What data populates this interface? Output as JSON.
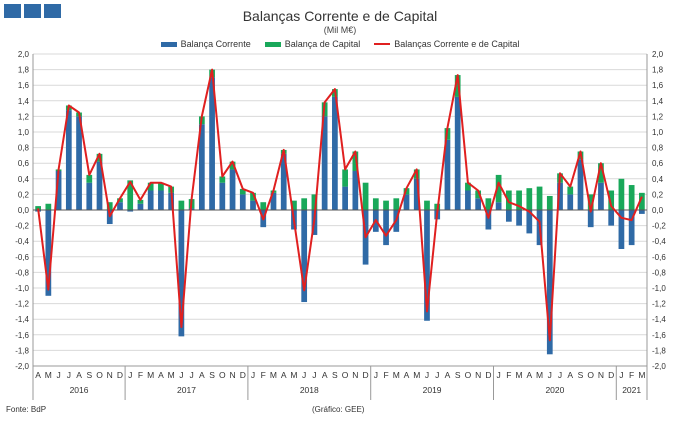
{
  "header": {
    "title": "Balanças Corrente e de Capital",
    "subtitle": "(Mil M€)"
  },
  "footer": {
    "source": "Fonte: BdP",
    "credit": "(Gráfico: GEE)"
  },
  "colors": {
    "logo": "#2f6aa6",
    "current": "#2f6aa6",
    "capital": "#19a85a",
    "combined": "#e02020",
    "grid": "#d9d9d9"
  },
  "chart_data": {
    "type": "bar",
    "ylim": [
      -2.0,
      2.0
    ],
    "yticks": [
      "-2,0",
      "-1,8",
      "-1,6",
      "-1,4",
      "-1,2",
      "-1,0",
      "-0,8",
      "-0,6",
      "-0,4",
      "-0,2",
      "0,0",
      "0,2",
      "0,4",
      "0,6",
      "0,8",
      "1,0",
      "1,2",
      "1,4",
      "1,6",
      "1,8",
      "2,0"
    ],
    "grid": true,
    "legend_position": "top-center",
    "categories": [
      "A",
      "M",
      "J",
      "J",
      "A",
      "S",
      "O",
      "N",
      "D",
      "J",
      "F",
      "M",
      "A",
      "M",
      "J",
      "J",
      "A",
      "S",
      "O",
      "N",
      "D",
      "J",
      "F",
      "M",
      "A",
      "M",
      "J",
      "J",
      "A",
      "S",
      "O",
      "N",
      "D",
      "J",
      "F",
      "M",
      "A",
      "M",
      "J",
      "J",
      "A",
      "S",
      "O",
      "N",
      "D",
      "J",
      "F",
      "M",
      "A",
      "M",
      "J",
      "J",
      "A",
      "S",
      "O",
      "N",
      "D",
      "J",
      "F",
      "M"
    ],
    "years": [
      {
        "label": "2016",
        "start": 0,
        "count": 9
      },
      {
        "label": "2017",
        "start": 9,
        "count": 12
      },
      {
        "label": "2018",
        "start": 21,
        "count": 12
      },
      {
        "label": "2019",
        "start": 33,
        "count": 12
      },
      {
        "label": "2020",
        "start": 45,
        "count": 12
      },
      {
        "label": "2021",
        "start": 57,
        "count": 3
      }
    ],
    "series": [
      {
        "name": "Balança Corrente",
        "kind": "bar",
        "values": [
          -0.02,
          -1.1,
          0.5,
          1.28,
          1.2,
          0.35,
          0.62,
          -0.18,
          0.1,
          -0.02,
          0.08,
          0.25,
          0.25,
          0.22,
          -1.62,
          0.02,
          1.1,
          1.7,
          0.35,
          0.52,
          0.2,
          0.12,
          -0.22,
          0.22,
          0.72,
          -0.25,
          -1.18,
          -0.32,
          1.2,
          1.45,
          0.3,
          0.5,
          -0.7,
          -0.28,
          -0.45,
          -0.28,
          0.2,
          0.4,
          -1.42,
          -0.12,
          0.9,
          1.45,
          0.25,
          0.15,
          -0.25,
          0.1,
          -0.15,
          -0.2,
          -0.3,
          -0.45,
          -1.85,
          0.35,
          0.2,
          0.65,
          -0.22,
          0.35,
          -0.2,
          -0.5,
          -0.45,
          -0.05
        ]
      },
      {
        "name": "Balança de Capital",
        "kind": "bar",
        "values": [
          0.05,
          0.08,
          0.02,
          0.06,
          0.05,
          0.1,
          0.1,
          0.1,
          0.05,
          0.38,
          0.05,
          0.1,
          0.1,
          0.08,
          0.12,
          0.12,
          0.1,
          0.1,
          0.08,
          0.1,
          0.07,
          0.1,
          0.1,
          0.03,
          0.05,
          0.12,
          0.15,
          0.2,
          0.18,
          0.1,
          0.22,
          0.25,
          0.35,
          0.15,
          0.12,
          0.15,
          0.08,
          0.12,
          0.12,
          0.08,
          0.15,
          0.28,
          0.1,
          0.1,
          0.15,
          0.35,
          0.25,
          0.25,
          0.28,
          0.3,
          0.18,
          0.12,
          0.1,
          0.1,
          0.2,
          0.25,
          0.25,
          0.4,
          0.32,
          0.22
        ]
      },
      {
        "name": "Balanças Corrente e de Capital",
        "kind": "line",
        "values": [
          0.02,
          -1.02,
          0.52,
          1.34,
          1.25,
          0.45,
          0.72,
          -0.08,
          0.15,
          0.36,
          0.13,
          0.35,
          0.35,
          0.3,
          -1.5,
          0.14,
          1.2,
          1.8,
          0.43,
          0.62,
          0.27,
          0.22,
          -0.12,
          0.25,
          0.77,
          -0.13,
          -1.03,
          -0.12,
          1.38,
          1.55,
          0.52,
          0.75,
          -0.35,
          -0.13,
          -0.33,
          -0.13,
          0.28,
          0.52,
          -1.3,
          -0.04,
          1.05,
          1.73,
          0.35,
          0.25,
          -0.1,
          0.35,
          0.1,
          0.05,
          -0.02,
          -0.15,
          -1.67,
          0.47,
          0.3,
          0.75,
          -0.02,
          0.6,
          0.05,
          -0.1,
          -0.13,
          0.17
        ]
      }
    ]
  }
}
